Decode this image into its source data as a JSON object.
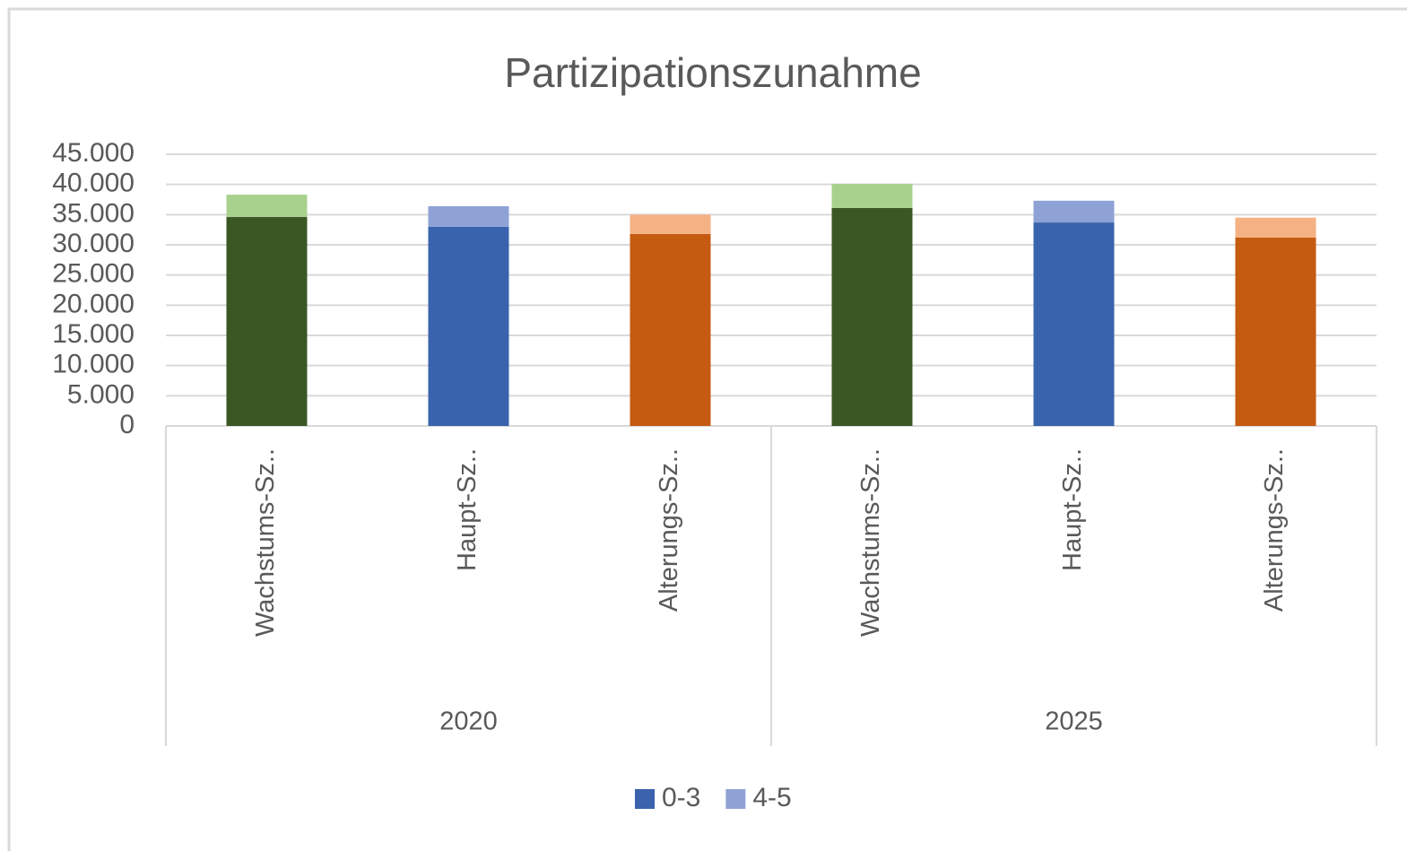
{
  "chart_data": {
    "type": "stacked_bar",
    "title": "Partizipationszunahme",
    "categories": [
      "Wachstums-Sz..",
      "Haupt-Sz..",
      "Alterungs-Sz..",
      "Wachstums-Sz..",
      "Haupt-Sz..",
      "Alterungs-Sz.."
    ],
    "group_labels": [
      "2020",
      "2025"
    ],
    "series": [
      {
        "name": "0-3",
        "color": "#3a62ad",
        "colors": [
          "#3b5724",
          "#3a63ad",
          "#c55a11",
          "#3b5724",
          "#3a63ad",
          "#c55a11"
        ],
        "values": [
          34600,
          33000,
          31800,
          36100,
          33700,
          31200
        ]
      },
      {
        "name": "4-5",
        "color": "#8fa3d5",
        "colors": [
          "#a9d18e",
          "#8ea2d5",
          "#f4b183",
          "#a9d18e",
          "#8ea2d5",
          "#f4b183"
        ],
        "values": [
          3700,
          3400,
          3200,
          4000,
          3600,
          3300
        ]
      }
    ],
    "ylim": [
      0,
      45000
    ],
    "yticks": [
      0,
      {
        "value": 5000,
        "label": "5.000"
      },
      {
        "value": 10000,
        "label": "10.000"
      },
      {
        "value": 15000,
        "label": "15.000"
      },
      {
        "value": 20000,
        "label": "20.000"
      },
      {
        "value": 25000,
        "label": "25.000"
      },
      {
        "value": 30000,
        "label": "30.000"
      },
      {
        "value": 35000,
        "label": "35.000"
      },
      {
        "value": 40000,
        "label": "40.000"
      },
      {
        "value": 45000,
        "label": "45.000"
      }
    ],
    "grid": true,
    "legend": "bottom"
  }
}
